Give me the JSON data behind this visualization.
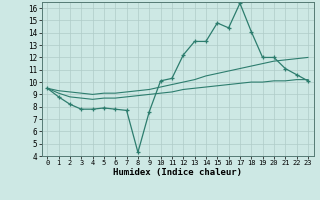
{
  "xlabel": "Humidex (Indice chaleur)",
  "bg_color": "#cde8e4",
  "grid_color": "#b0ccc8",
  "line_color": "#2d7d6e",
  "x_main": [
    0,
    1,
    2,
    3,
    4,
    5,
    6,
    7,
    8,
    9,
    10,
    11,
    12,
    13,
    14,
    15,
    16,
    17,
    18,
    19,
    20,
    21,
    22,
    23
  ],
  "y_main": [
    9.5,
    8.8,
    8.2,
    7.8,
    7.8,
    7.9,
    7.8,
    7.7,
    4.3,
    7.6,
    10.1,
    10.3,
    12.2,
    13.3,
    13.3,
    14.8,
    14.4,
    16.4,
    14.1,
    12.0,
    12.0,
    11.1,
    10.6,
    10.1
  ],
  "y_upper": [
    9.5,
    9.3,
    9.2,
    9.1,
    9.0,
    9.1,
    9.1,
    9.2,
    9.3,
    9.4,
    9.6,
    9.8,
    10.0,
    10.2,
    10.5,
    10.7,
    10.9,
    11.1,
    11.3,
    11.5,
    11.7,
    11.8,
    11.9,
    12.0
  ],
  "y_lower": [
    9.5,
    9.1,
    8.8,
    8.7,
    8.6,
    8.7,
    8.7,
    8.8,
    8.9,
    9.0,
    9.1,
    9.2,
    9.4,
    9.5,
    9.6,
    9.7,
    9.8,
    9.9,
    10.0,
    10.0,
    10.1,
    10.1,
    10.2,
    10.2
  ],
  "ylim": [
    4,
    16.5
  ],
  "xlim": [
    -0.5,
    23.5
  ],
  "yticks": [
    4,
    5,
    6,
    7,
    8,
    9,
    10,
    11,
    12,
    13,
    14,
    15,
    16
  ],
  "xticks": [
    0,
    1,
    2,
    3,
    4,
    5,
    6,
    7,
    8,
    9,
    10,
    11,
    12,
    13,
    14,
    15,
    16,
    17,
    18,
    19,
    20,
    21,
    22,
    23
  ]
}
